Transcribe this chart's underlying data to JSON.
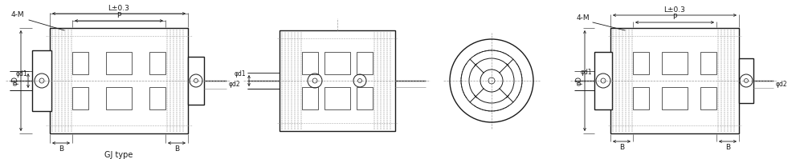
{
  "bg_color": "#ffffff",
  "line_color": "#1a1a1a",
  "dash_color": "#555555",
  "gray_color": "#888888",
  "center_color": "#999999",
  "title": "GJ type",
  "dim_L": "L±0.3",
  "dim_P": "P",
  "dim_B": "B",
  "dim_4M": "4-M",
  "dim_phiD": "φD",
  "dim_phid1": "φd1",
  "dim_phid2": "φd2",
  "fig_width": 9.96,
  "fig_height": 1.99,
  "dpi": 100
}
